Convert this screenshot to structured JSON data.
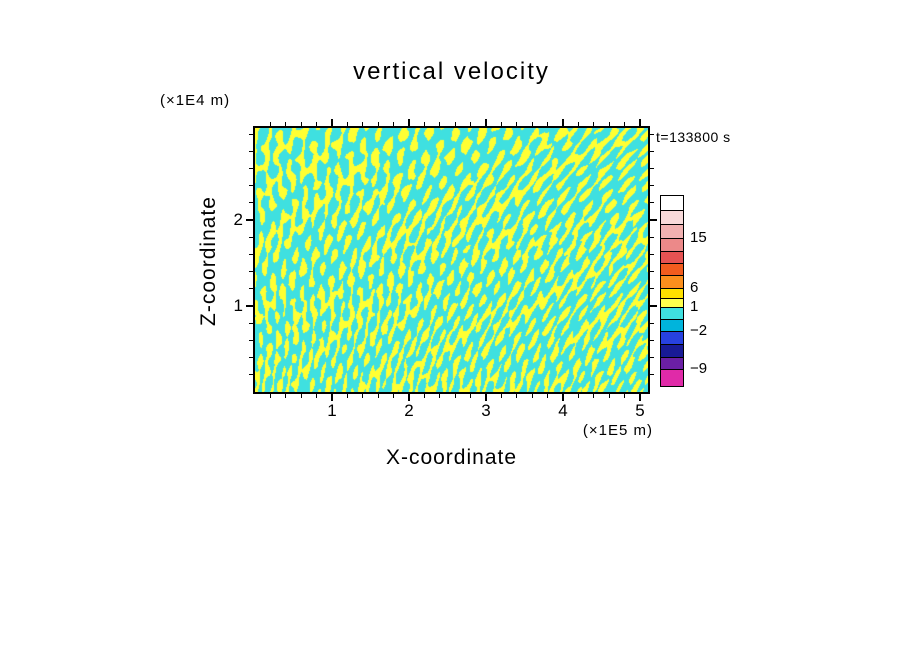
{
  "chart_data": {
    "type": "heatmap",
    "title": "vertical velocity",
    "timestamp": "t=133800 s",
    "x_axis": {
      "label": "X-coordinate",
      "unit": "(×1E5 m)",
      "range": [
        0,
        5.1
      ],
      "major_ticks": [
        1,
        2,
        3,
        4,
        5
      ],
      "minor_step": 0.2
    },
    "y_axis": {
      "label": "Z-coordinate",
      "unit": "(×1E4 m)",
      "range": [
        0,
        3.1
      ],
      "major_ticks": [
        1,
        2
      ],
      "minor_step": 0.2
    },
    "field": {
      "description": "Dense wave filament field: thin yellow filaments (values between contour levels 1 and 6) over a cyan background (values between -2 and 1); filaments are nearly vertical and finer near the bottom boundary, more inclined chevron-like patterns aloft.",
      "positive_color": "#ffff33",
      "negative_color": "#3fe0e0",
      "pattern": {
        "threshold": 0.3,
        "stretch": 0.55,
        "shear": 0.012,
        "components": [
          [
            1.0,
            0.5,
            0.0,
            0.0,
            2.4,
            0.05
          ],
          [
            0.65,
            0.24,
            0.26,
            1.2,
            0.9,
            0.031
          ],
          [
            0.65,
            0.24,
            -0.26,
            4.0,
            0.9,
            0.043
          ],
          [
            0.45,
            0.1,
            0.13,
            2.4,
            1.6,
            0.017
          ],
          [
            0.35,
            0.85,
            0.06,
            0.6,
            1.1,
            0.074
          ],
          [
            0.3,
            0.05,
            0.45,
            2.9,
            0.7,
            0.012
          ]
        ]
      }
    },
    "colorbar": {
      "labeled_levels": [
        15,
        6,
        1,
        -2,
        -9
      ],
      "segments": [
        {
          "color": "#ffffff",
          "h": 15
        },
        {
          "color": "#f8dada",
          "h": 14
        },
        {
          "color": "#f1b1b1",
          "h": 14,
          "label": "15"
        },
        {
          "color": "#ec8989",
          "h": 13
        },
        {
          "color": "#e65252",
          "h": 12
        },
        {
          "color": "#f25c1e",
          "h": 12
        },
        {
          "color": "#fb8f1d",
          "h": 13,
          "label": "6"
        },
        {
          "color": "#ffe100",
          "h": 10
        },
        {
          "color": "#ffff4d",
          "h": 9,
          "label": "1"
        },
        {
          "color": "#3fe0e0",
          "h": 12
        },
        {
          "color": "#00b4dc",
          "h": 12,
          "label": "−2"
        },
        {
          "color": "#2741e0",
          "h": 13
        },
        {
          "color": "#181a96",
          "h": 13
        },
        {
          "color": "#6b1fa5",
          "h": 12,
          "label": "−9"
        },
        {
          "color": "#e02aa8",
          "h": 16
        }
      ]
    }
  }
}
